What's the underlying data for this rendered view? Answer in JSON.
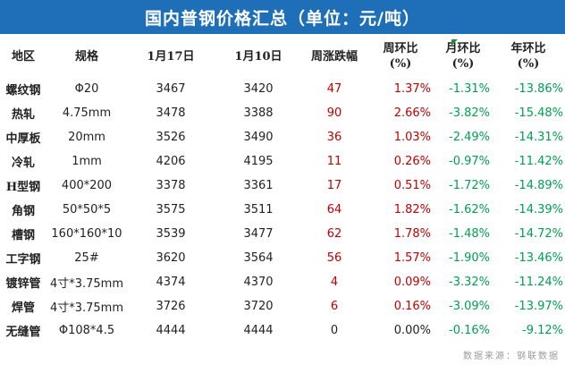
{
  "title": "国内普钢价格汇总（单位：元/吨）",
  "headers": {
    "region": "地区",
    "spec": "规格",
    "date1": "1月17日",
    "date2": "1月10日",
    "weekly_change": "周涨跌幅",
    "wow_line1": "周环比",
    "wow_line2": "(%)",
    "mom_line1": "月环比",
    "mom_line2": "(%)",
    "yoy_line1": "年环比",
    "yoy_line2": "(%)"
  },
  "rows": [
    {
      "region": "螺纹钢",
      "spec": "Φ20",
      "d1": "3467",
      "d2": "3420",
      "chg": "47",
      "wow": "1.37%",
      "mom": "-1.31%",
      "yoy": "-13.86%",
      "dir": "up"
    },
    {
      "region": "热轧",
      "spec": "4.75mm",
      "d1": "3478",
      "d2": "3388",
      "chg": "90",
      "wow": "2.66%",
      "mom": "-3.82%",
      "yoy": "-15.48%",
      "dir": "up"
    },
    {
      "region": "中厚板",
      "spec": "20mm",
      "d1": "3526",
      "d2": "3490",
      "chg": "36",
      "wow": "1.03%",
      "mom": "-2.49%",
      "yoy": "-14.31%",
      "dir": "up"
    },
    {
      "region": "冷轧",
      "spec": "1mm",
      "d1": "4206",
      "d2": "4195",
      "chg": "11",
      "wow": "0.26%",
      "mom": "-0.97%",
      "yoy": "-11.42%",
      "dir": "up"
    },
    {
      "region": "H型钢",
      "spec": "400*200",
      "d1": "3378",
      "d2": "3361",
      "chg": "17",
      "wow": "0.51%",
      "mom": "-1.72%",
      "yoy": "-14.89%",
      "dir": "up"
    },
    {
      "region": "角钢",
      "spec": "50*50*5",
      "d1": "3575",
      "d2": "3511",
      "chg": "64",
      "wow": "1.82%",
      "mom": "-1.62%",
      "yoy": "-14.39%",
      "dir": "up"
    },
    {
      "region": "槽钢",
      "spec": "160*160*10",
      "d1": "3539",
      "d2": "3477",
      "chg": "62",
      "wow": "1.78%",
      "mom": "-1.48%",
      "yoy": "-14.72%",
      "dir": "up"
    },
    {
      "region": "工字钢",
      "spec": "25#",
      "d1": "3620",
      "d2": "3564",
      "chg": "56",
      "wow": "1.57%",
      "mom": "-1.90%",
      "yoy": "-13.46%",
      "dir": "up"
    },
    {
      "region": "镀锌管",
      "spec": "4寸*3.75mm",
      "d1": "4374",
      "d2": "4370",
      "chg": "4",
      "wow": "0.09%",
      "mom": "-3.32%",
      "yoy": "-11.24%",
      "dir": "up"
    },
    {
      "region": "焊管",
      "spec": "4寸*3.75mm",
      "d1": "3726",
      "d2": "3720",
      "chg": "6",
      "wow": "0.16%",
      "mom": "-3.09%",
      "yoy": "-13.97%",
      "dir": "up"
    },
    {
      "region": "无缝管",
      "spec": "Φ108*4.5",
      "d1": "4444",
      "d2": "4444",
      "chg": "0",
      "wow": "0.00%",
      "mom": "-0.16%",
      "yoy": "-9.12%",
      "dir": "flat"
    }
  ],
  "footnote": "数据来源：钢联数据",
  "colors": {
    "title_bg": "#1f6fb8",
    "up": "#c00000",
    "down": "#00a050",
    "marker": "#2e8b3a"
  }
}
